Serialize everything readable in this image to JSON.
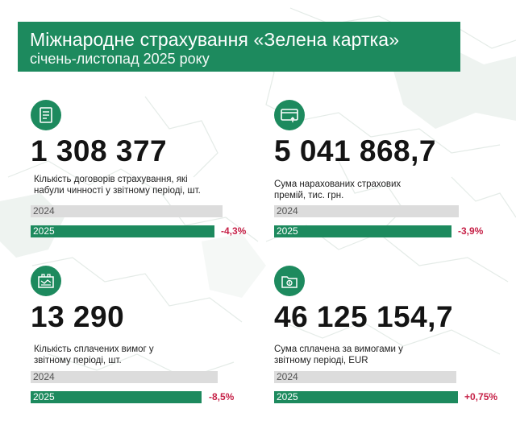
{
  "header": {
    "title": "Міжнародне страхування «Зелена картка»",
    "subtitle": "січень-листопад 2025 року"
  },
  "colors": {
    "brand_green": "#1d8a5e",
    "negative_red": "#c62147",
    "bar_gray": "#dcdcdc"
  },
  "cards": [
    {
      "icon": "document-icon",
      "value": "1 308 377",
      "description_line1": "Кількість договорів страхування, які",
      "description_line2": "набули чинності у звітному періоді, шт.",
      "year_prev": "2024",
      "year_curr": "2025",
      "change": "-4,3%",
      "ratio_2025_to_2024": 0.957
    },
    {
      "icon": "credit-card-icon",
      "value": "5 041 868,7",
      "description_line1": "Сума нарахованих страхових",
      "description_line2": "премій, тис. грн.",
      "year_prev": "2024",
      "year_curr": "2025",
      "change": "-3,9%",
      "ratio_2025_to_2024": 0.961
    },
    {
      "icon": "map-claims-icon",
      "value": "13 290",
      "description_line1": "Кількість сплачених вимог у",
      "description_line2": "звітному періоді, шт.",
      "year_prev": "2024",
      "year_curr": "2025",
      "change": "-8,5%",
      "ratio_2025_to_2024": 0.915
    },
    {
      "icon": "money-folder-icon",
      "value": "46 125 154,7",
      "description_line1": "Сума сплачена за вимогами у",
      "description_line2": "звітному періоді, EUR",
      "year_prev": "2024",
      "year_curr": "2025",
      "change": "+0,75%",
      "ratio_2025_to_2024": 1.0075
    }
  ]
}
